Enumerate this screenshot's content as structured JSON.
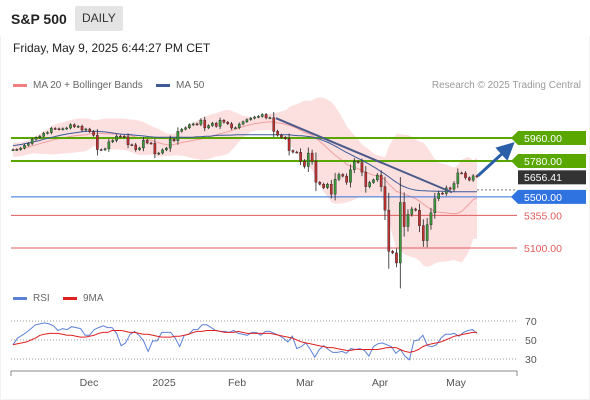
{
  "header": {
    "title": "S&P 500",
    "interval": "DAILY"
  },
  "datetime": "Friday, May 9, 2025 6:44:27 PM CET",
  "legend": {
    "bollinger": "MA 20 + Bollinger Bands",
    "ma50": "MA 50",
    "rsi": "RSI",
    "ma9": "9MA"
  },
  "copyright": "Research © 2025 Trading Central",
  "colors": {
    "green": "#5aa700",
    "blue": "#2f73e0",
    "red": "#e05c5c",
    "dark": "#333333",
    "ma50": "#3c5a99",
    "band": "#fbd4d4",
    "rsi": "#5a80d8",
    "rsi_ma": "#e02020",
    "candle_up": "#3a9a3a",
    "candle_down": "#c03030"
  },
  "chart_data": {
    "type": "candlestick",
    "price_levels": [
      {
        "label": "5960.00",
        "value": 5960,
        "kind": "resistance",
        "color": "green"
      },
      {
        "label": "5780.00",
        "value": 5780,
        "kind": "resistance",
        "color": "green"
      },
      {
        "label": "5656.41",
        "value": 5656.41,
        "kind": "last",
        "color": "dark"
      },
      {
        "label": "5500.00",
        "value": 5500,
        "kind": "pivot",
        "color": "blue"
      },
      {
        "label": "5355.00",
        "value": 5355,
        "kind": "support",
        "color": "red"
      },
      {
        "label": "5100.00",
        "value": 5100,
        "kind": "support",
        "color": "red"
      }
    ],
    "x_ticks": [
      "Dec",
      "2025",
      "Feb",
      "Mar",
      "Apr",
      "May"
    ],
    "rsi_ticks": [
      "70",
      "50",
      "30"
    ],
    "closes": [
      5868,
      5870,
      5881,
      5903,
      5917,
      5949,
      5962,
      5974,
      5998,
      6003,
      6035,
      6032,
      6028,
      6033,
      6038,
      6064,
      6048,
      6052,
      6022,
      6030,
      6010,
      5982,
      5870,
      5868,
      5875,
      5930,
      5941,
      5975,
      5974,
      5970,
      5907,
      5906,
      5869,
      5882,
      5942,
      5921,
      5918,
      5836,
      5842,
      5867,
      5881,
      5950,
      5938,
      6012,
      6029,
      6040,
      6064,
      6070,
      6067,
      6100,
      6039,
      6057,
      6076,
      6051,
      6099,
      6083,
      6071,
      6038,
      6040,
      6069,
      6087,
      6104,
      6115,
      6124,
      6129,
      6144,
      6117,
      6118,
      6012,
      5983,
      5965,
      5955,
      5862,
      5850,
      5849,
      5778,
      5738,
      5842,
      5778,
      5614,
      5599,
      5572,
      5599,
      5521,
      5638,
      5675,
      5662,
      5614,
      5712,
      5776,
      5768,
      5693,
      5580,
      5612,
      5633,
      5670,
      5580,
      5396,
      5074,
      5062,
      4983,
      5456,
      5268,
      5363,
      5405,
      5396,
      5275,
      5158,
      5282,
      5375,
      5485,
      5529,
      5526,
      5570,
      5560,
      5604,
      5687,
      5686,
      5650,
      5631,
      5664,
      5656
    ],
    "ma50_values": [
      5900,
      5905,
      5910,
      5918,
      5925,
      5933,
      5940,
      5950,
      5958,
      5966,
      5975,
      5983,
      5989,
      5995,
      6000,
      6005,
      6010,
      6012,
      6013,
      6012,
      6010,
      6008,
      6003,
      5998,
      5994,
      5990,
      5988,
      5985,
      5982,
      5979,
      5976,
      5971,
      5968,
      5966,
      5966,
      5966,
      5966,
      5966,
      5966,
      5966,
      5966,
      5966,
      5969,
      5969,
      5974,
      5974,
      5979,
      5981,
      5982,
      5983,
      5983,
      5985,
      5985,
      5985,
      5985,
      5985,
      5985,
      5985,
      5985,
      5985,
      5985,
      5985,
      5985,
      5985,
      5982,
      5979,
      5977,
      5973,
      5970,
      5962,
      5952,
      5938,
      5925,
      5908,
      5890,
      5870,
      5850,
      5833,
      5815,
      5798,
      5780,
      5762,
      5743,
      5722,
      5700,
      5677,
      5652,
      5627,
      5604,
      5585,
      5571,
      5560,
      5553,
      5549,
      5547,
      5546,
      5545,
      5544,
      5543,
      5542,
      5540,
      5540,
      5540,
      5540,
      5540,
      5540,
      5540
    ],
    "rsi_values": [
      45,
      52,
      55,
      58,
      62,
      66,
      67,
      68,
      67,
      65,
      60,
      62,
      61,
      64,
      63,
      62,
      55,
      55,
      61,
      63,
      65,
      63,
      63,
      57,
      44,
      47,
      56,
      59,
      55,
      49,
      38,
      49,
      49,
      58,
      58,
      58,
      52,
      43,
      55,
      56,
      61,
      61,
      66,
      66,
      63,
      60,
      59,
      59,
      58,
      60,
      57,
      56,
      55,
      58,
      58,
      55,
      59,
      59,
      57,
      55,
      52,
      48,
      54,
      41,
      43,
      47,
      40,
      32,
      40,
      44,
      40,
      37,
      37,
      38,
      36,
      41,
      40,
      41,
      39,
      33,
      43,
      46,
      47,
      45,
      43,
      36,
      40,
      33,
      29,
      49,
      50,
      55,
      44,
      43,
      45,
      52,
      56,
      56,
      57,
      54,
      58,
      60,
      61,
      57
    ],
    "rsi_ma_values": [
      45,
      46,
      47,
      48,
      50,
      52,
      55,
      56,
      57,
      57,
      57,
      56,
      55,
      55,
      54,
      53,
      53,
      54,
      55,
      57,
      58,
      58,
      60,
      60,
      60,
      59,
      58,
      58,
      57,
      56,
      56,
      55,
      54,
      53,
      53,
      53,
      54,
      54,
      55,
      56,
      58,
      59,
      59,
      60,
      60,
      60,
      59,
      58,
      58,
      58,
      59,
      58,
      57,
      57,
      57,
      57,
      57,
      57,
      56,
      55,
      54,
      53,
      52,
      50,
      48,
      47,
      46,
      45,
      44,
      43,
      42,
      42,
      41,
      40,
      39,
      39,
      40,
      40,
      40,
      40,
      40,
      40,
      41,
      42,
      42,
      42,
      40,
      38,
      37,
      38,
      40,
      43,
      45,
      46,
      47,
      48,
      50,
      52,
      54,
      55,
      56,
      57,
      58,
      58
    ]
  }
}
